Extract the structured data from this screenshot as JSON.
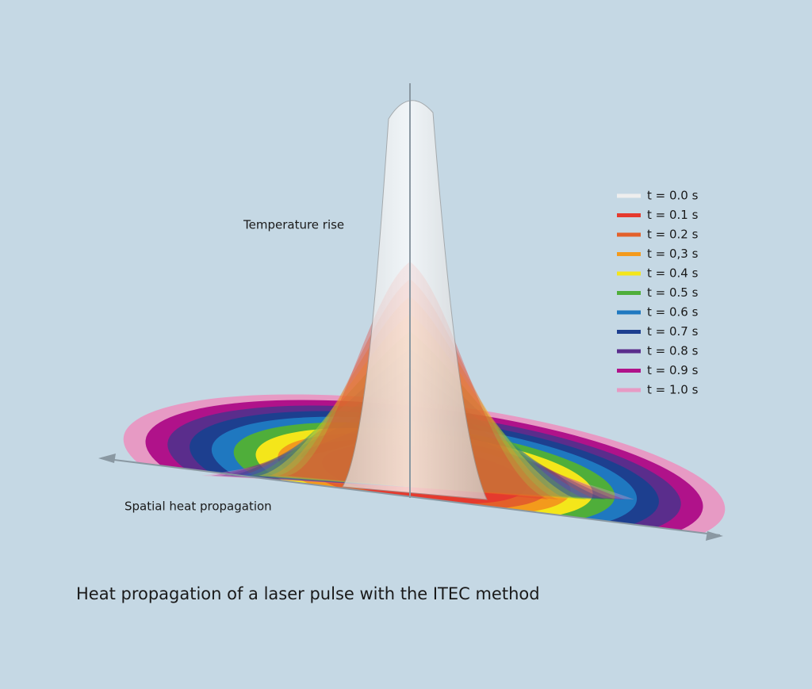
{
  "labels": {
    "y_axis": "Temperature rise",
    "x_axis": "Spatial heat propagation"
  },
  "legend": [
    {
      "label": "t = 0.0 s",
      "color": "#eeeeee"
    },
    {
      "label": "t = 0.1 s",
      "color": "#e53a2e"
    },
    {
      "label": "t = 0.2 s",
      "color": "#e3602a"
    },
    {
      "label": "t = 0,3 s",
      "color": "#f39a1c"
    },
    {
      "label": "t = 0.4 s",
      "color": "#f4e61a"
    },
    {
      "label": "t = 0.5 s",
      "color": "#4fae3a"
    },
    {
      "label": "t = 0.6 s",
      "color": "#1f78c0"
    },
    {
      "label": "t = 0.7 s",
      "color": "#1d3f8f"
    },
    {
      "label": "t = 0.8 s",
      "color": "#5a2d8c"
    },
    {
      "label": "t = 0.9 s",
      "color": "#b0128a"
    },
    {
      "label": "t = 1.0 s",
      "color": "#e79ac4"
    }
  ],
  "caption": "Heat propagation of a laser pulse with the ITEC method"
}
